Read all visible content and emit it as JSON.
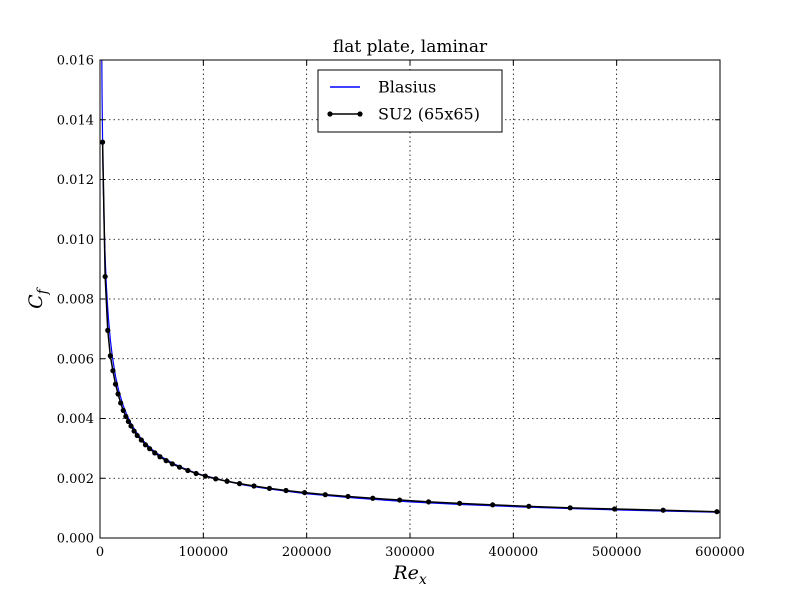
{
  "chart_data": {
    "type": "line",
    "title": "flat plate, laminar",
    "xlabel": {
      "base": "Re",
      "sub": "x"
    },
    "ylabel": {
      "base": "C",
      "sub": "f"
    },
    "xlim": [
      0,
      600000
    ],
    "ylim": [
      0,
      0.016
    ],
    "grid": true,
    "legend_position": "top-center",
    "x_ticks": [
      0,
      100000,
      200000,
      300000,
      400000,
      500000,
      600000
    ],
    "x_tick_labels": [
      "0",
      "100000",
      "200000",
      "300000",
      "400000",
      "500000",
      "600000"
    ],
    "y_ticks": [
      0,
      0.002,
      0.004,
      0.006,
      0.008,
      0.01,
      0.012,
      0.014,
      0.016
    ],
    "y_tick_labels": [
      "0.000",
      "0.002",
      "0.004",
      "0.006",
      "0.008",
      "0.010",
      "0.012",
      "0.014",
      "0.016"
    ],
    "series": [
      {
        "name": "Blasius",
        "color": "#0000ff",
        "marker": "none",
        "x": [
          1500,
          2000,
          2500,
          3000,
          4000,
          5000,
          6000,
          7000,
          8000,
          10000,
          12000,
          15000,
          18000,
          22000,
          26000,
          30000,
          35000,
          40000,
          50000,
          60000,
          70000,
          80000,
          90000,
          100000,
          120000,
          140000,
          160000,
          180000,
          200000,
          250000,
          300000,
          350000,
          400000,
          450000,
          500000,
          550000,
          600000
        ],
        "y": [
          0.01715,
          0.01485,
          0.01328,
          0.01212,
          0.0105,
          0.00939,
          0.00857,
          0.00794,
          0.00742,
          0.00664,
          0.00606,
          0.00542,
          0.00495,
          0.00448,
          0.00412,
          0.00383,
          0.00355,
          0.00332,
          0.00297,
          0.00271,
          0.00251,
          0.00235,
          0.00221,
          0.0021,
          0.00192,
          0.00177,
          0.00166,
          0.00157,
          0.00148,
          0.00133,
          0.00121,
          0.00112,
          0.00105,
          0.00099,
          0.00094,
          0.0009,
          0.00086
        ]
      },
      {
        "name": "SU2 (65x65)",
        "color": "#000000",
        "marker": "circle",
        "x": [
          2500,
          5000,
          7500,
          10000,
          12500,
          15000,
          17500,
          20000,
          22500,
          25000,
          27500,
          30000,
          33000,
          36000,
          40000,
          44000,
          48000,
          53000,
          58000,
          64000,
          70000,
          77000,
          85000,
          93000,
          102000,
          112000,
          123000,
          135000,
          149000,
          164000,
          180000,
          198000,
          218000,
          240000,
          264000,
          290000,
          318000,
          348000,
          380000,
          415000,
          455000,
          498000,
          545000,
          597000
        ],
        "y": [
          0.01325,
          0.00875,
          0.00695,
          0.0061,
          0.0056,
          0.00515,
          0.00482,
          0.00452,
          0.00427,
          0.00407,
          0.0039,
          0.00375,
          0.00358,
          0.00343,
          0.00328,
          0.00312,
          0.00299,
          0.00285,
          0.00272,
          0.00259,
          0.00248,
          0.00237,
          0.00226,
          0.00216,
          0.00207,
          0.00198,
          0.0019,
          0.00182,
          0.00174,
          0.00166,
          0.00159,
          0.00152,
          0.00145,
          0.00139,
          0.00133,
          0.00127,
          0.00121,
          0.00116,
          0.00111,
          0.00106,
          0.00101,
          0.00097,
          0.00093,
          0.00088
        ]
      }
    ]
  }
}
